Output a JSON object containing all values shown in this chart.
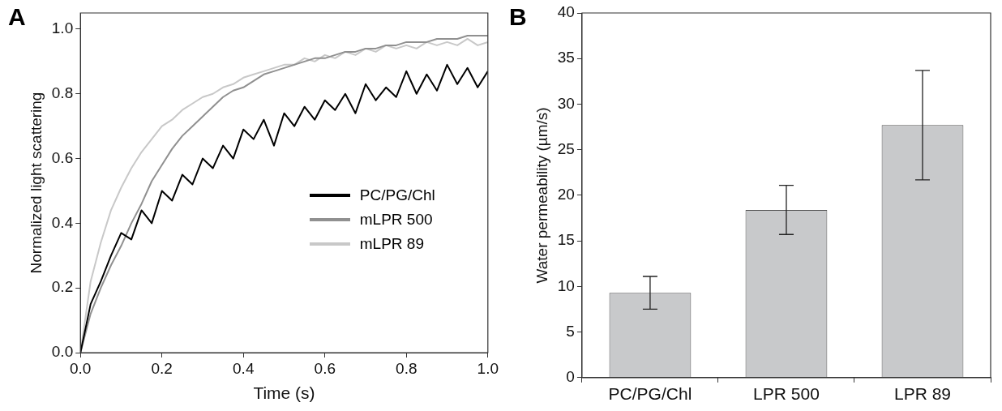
{
  "chart_data": [
    {
      "type": "line",
      "title": "A",
      "xlabel": "Time (s)",
      "ylabel": "Normalized light scattering",
      "xlim": [
        0,
        1.0
      ],
      "xticks": [
        {
          "value": 0,
          "label": "0.0"
        },
        {
          "value": 0.2,
          "label": "0.2"
        },
        {
          "value": 0.4,
          "label": "0.4"
        },
        {
          "value": 0.6,
          "label": "0.6"
        },
        {
          "value": 0.8,
          "label": "0.8"
        },
        {
          "value": 1.0,
          "label": "1.0"
        }
      ],
      "ylim": [
        0,
        1.05
      ],
      "yticks": [
        {
          "value": 0,
          "label": "0.0"
        },
        {
          "value": 0.2,
          "label": "0.2"
        },
        {
          "value": 0.4,
          "label": "0.4"
        },
        {
          "value": 0.6,
          "label": "0.6"
        },
        {
          "value": 0.8,
          "label": "0.8"
        },
        {
          "value": 1.0,
          "label": "1.0"
        }
      ],
      "grid": false,
      "legend": "right",
      "marker": "none",
      "line_style": "solid",
      "x": [
        0,
        0.025,
        0.05,
        0.075,
        0.1,
        0.125,
        0.15,
        0.175,
        0.2,
        0.225,
        0.25,
        0.275,
        0.3,
        0.325,
        0.35,
        0.375,
        0.4,
        0.425,
        0.45,
        0.475,
        0.5,
        0.525,
        0.55,
        0.575,
        0.6,
        0.625,
        0.65,
        0.675,
        0.7,
        0.725,
        0.75,
        0.775,
        0.8,
        0.825,
        0.85,
        0.875,
        0.9,
        0.925,
        0.95,
        0.975,
        1.0
      ],
      "series": [
        {
          "name": "PC/PG/Chl",
          "color": "#000000",
          "values": [
            0.0,
            0.15,
            0.22,
            0.3,
            0.37,
            0.35,
            0.44,
            0.4,
            0.5,
            0.47,
            0.55,
            0.52,
            0.6,
            0.57,
            0.64,
            0.6,
            0.69,
            0.66,
            0.72,
            0.64,
            0.74,
            0.7,
            0.76,
            0.72,
            0.78,
            0.75,
            0.8,
            0.74,
            0.83,
            0.78,
            0.82,
            0.79,
            0.87,
            0.8,
            0.86,
            0.81,
            0.89,
            0.83,
            0.88,
            0.82,
            0.87
          ]
        },
        {
          "name": "mLPR 500",
          "color": "#909090",
          "values": [
            0,
            0.12,
            0.2,
            0.27,
            0.33,
            0.4,
            0.46,
            0.53,
            0.58,
            0.63,
            0.67,
            0.7,
            0.73,
            0.76,
            0.79,
            0.81,
            0.82,
            0.84,
            0.86,
            0.87,
            0.88,
            0.89,
            0.9,
            0.91,
            0.91,
            0.92,
            0.93,
            0.93,
            0.94,
            0.94,
            0.95,
            0.95,
            0.96,
            0.96,
            0.96,
            0.97,
            0.97,
            0.97,
            0.98,
            0.98,
            0.98
          ]
        },
        {
          "name": "mLPR 89",
          "color": "#c8c8c8",
          "values": [
            0,
            0.22,
            0.34,
            0.44,
            0.51,
            0.57,
            0.62,
            0.66,
            0.7,
            0.72,
            0.75,
            0.77,
            0.79,
            0.8,
            0.82,
            0.83,
            0.85,
            0.86,
            0.87,
            0.88,
            0.89,
            0.89,
            0.91,
            0.9,
            0.92,
            0.91,
            0.93,
            0.92,
            0.94,
            0.93,
            0.95,
            0.94,
            0.95,
            0.94,
            0.96,
            0.95,
            0.96,
            0.95,
            0.97,
            0.95,
            0.96
          ]
        }
      ]
    },
    {
      "type": "bar",
      "title": "B",
      "ylabel": "Water permeability (µm/s)",
      "categories": [
        "PC/PG/Chl",
        "LPR 500",
        "LPR 89"
      ],
      "values": [
        9.3,
        18.4,
        27.7
      ],
      "errors": [
        [
          7.5,
          11.1
        ],
        [
          15.7,
          21.1
        ],
        [
          21.7,
          33.7
        ]
      ],
      "color": "#c8c9cb",
      "ylim": [
        0,
        40
      ],
      "yticks": [
        0,
        5,
        10,
        15,
        20,
        25,
        30,
        35,
        40
      ],
      "grid": false
    }
  ]
}
